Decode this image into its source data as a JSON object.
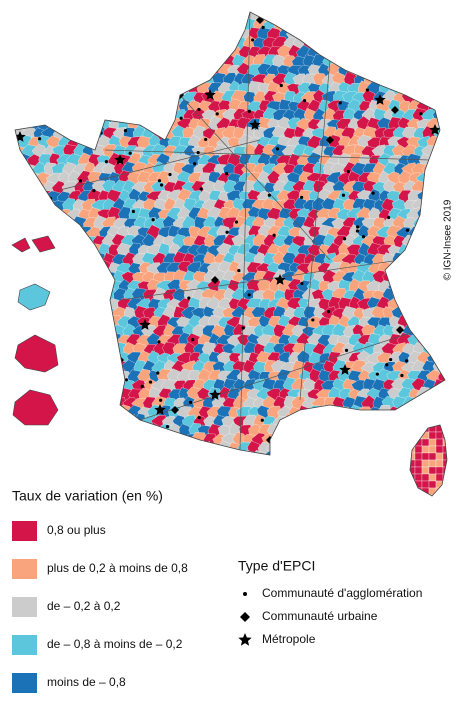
{
  "map": {
    "credit": "© IGN-Insee 2019"
  },
  "legend": {
    "title": "Taux de variation (en %)",
    "classes": [
      {
        "label": "0,8 ou plus",
        "color": "#d4154a"
      },
      {
        "label": "plus de 0,2 à moins de 0,8",
        "color": "#f9a47c"
      },
      {
        "label": "de – 0,2 à 0,2",
        "color": "#cccccc"
      },
      {
        "label": "de – 0,8 à moins de – 0,2",
        "color": "#5cc6dc"
      },
      {
        "label": "moins de – 0,8",
        "color": "#1b72b6"
      }
    ]
  },
  "epci_legend": {
    "title": "Type d'EPCI",
    "items": [
      {
        "label": "Communauté d'agglomération",
        "symbol": "dot"
      },
      {
        "label": "Communauté urbaine",
        "symbol": "diamond"
      },
      {
        "label": "Métropole",
        "symbol": "star"
      }
    ]
  }
}
